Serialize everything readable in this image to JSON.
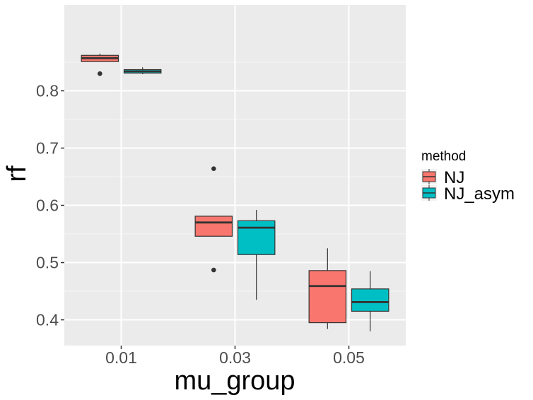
{
  "chart_data": {
    "type": "boxplot",
    "xlabel": "mu_group",
    "ylabel": "rf",
    "categories": [
      "0.01",
      "0.03",
      "0.05"
    ],
    "ylim": [
      0.355,
      0.95
    ],
    "yticks": [
      0.4,
      0.5,
      0.6,
      0.7,
      0.8
    ],
    "ytick_labels": [
      "0.4",
      "0.5",
      "0.6",
      "0.7",
      "0.8"
    ],
    "grid": true,
    "legend": {
      "title": "method",
      "position": "right",
      "entries": [
        "NJ",
        "NJ_asym"
      ]
    },
    "series": [
      {
        "name": "NJ",
        "color": "#F8766D",
        "boxes": [
          {
            "category": "0.01",
            "whisker_low": 0.851,
            "q1": 0.851,
            "median": 0.857,
            "q3": 0.862,
            "whisker_high": 0.865,
            "outliers": [
              0.83
            ]
          },
          {
            "category": "0.03",
            "whisker_low": 0.546,
            "q1": 0.546,
            "median": 0.57,
            "q3": 0.581,
            "whisker_high": 0.581,
            "outliers": [
              0.664,
              0.487
            ]
          },
          {
            "category": "0.05",
            "whisker_low": 0.384,
            "q1": 0.395,
            "median": 0.459,
            "q3": 0.486,
            "whisker_high": 0.525,
            "outliers": []
          }
        ]
      },
      {
        "name": "NJ_asym",
        "color": "#00BFC4",
        "boxes": [
          {
            "category": "0.01",
            "whisker_low": 0.829,
            "q1": 0.831,
            "median": 0.834,
            "q3": 0.837,
            "whisker_high": 0.841,
            "outliers": []
          },
          {
            "category": "0.03",
            "whisker_low": 0.435,
            "q1": 0.514,
            "median": 0.561,
            "q3": 0.573,
            "whisker_high": 0.592,
            "outliers": []
          },
          {
            "category": "0.05",
            "whisker_low": 0.38,
            "q1": 0.415,
            "median": 0.431,
            "q3": 0.454,
            "whisker_high": 0.485,
            "outliers": []
          }
        ]
      }
    ]
  }
}
